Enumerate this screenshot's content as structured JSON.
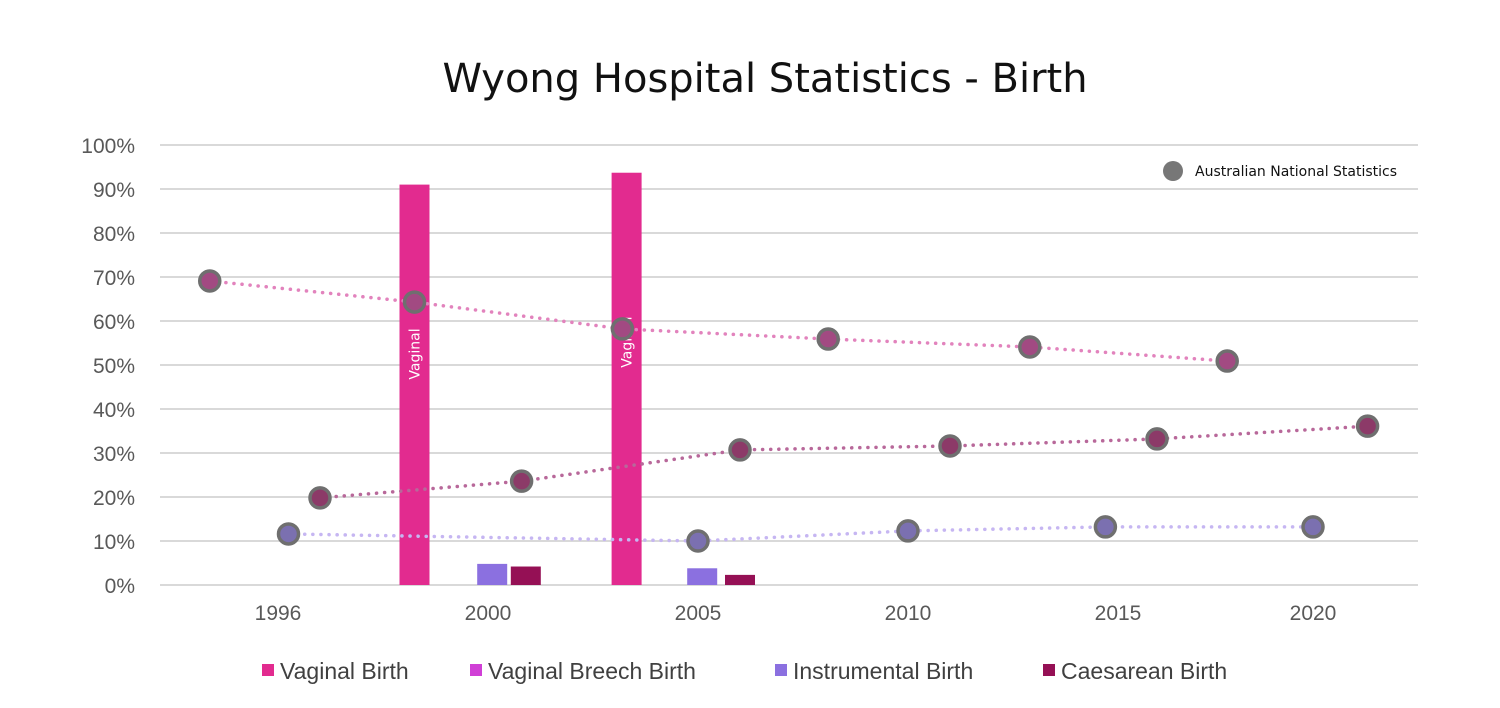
{
  "chart_data": {
    "type": "bar+line",
    "title": "Wyong Hospital Statistics - Birth",
    "xlabel": "",
    "ylabel": "",
    "x_ticks": [
      1996,
      2000,
      2005,
      2010,
      2015,
      2020
    ],
    "y_ticks": [
      "0%",
      "10%",
      "20%",
      "30%",
      "40%",
      "50%",
      "60%",
      "70%",
      "80%",
      "90%",
      "100%"
    ],
    "ylim": [
      0,
      100
    ],
    "grid": true,
    "legend_placement": "bottom",
    "bar_series": [
      {
        "name": "Vaginal Birth",
        "color": "#e22b8f",
        "points": [
          {
            "x": 1998.6,
            "y": 91.0,
            "label": "Vaginal"
          },
          {
            "x": 2003.3,
            "y": 93.7,
            "label": "Vaginal"
          }
        ]
      },
      {
        "name": "Vaginal Breech Birth",
        "color": "#d03fd6",
        "points": []
      },
      {
        "name": "Instrumental Birth",
        "color": "#8b70e0",
        "points": [
          {
            "x": 2000.1,
            "y": 4.8
          },
          {
            "x": 2005.1,
            "y": 3.8
          }
        ]
      },
      {
        "name": "Caesarean Birth",
        "color": "#951055",
        "points": [
          {
            "x": 2000.9,
            "y": 4.2
          },
          {
            "x": 2006.0,
            "y": 2.3
          }
        ]
      }
    ],
    "national_legend": "Australian National Statistics",
    "national_series": [
      {
        "line_color": "#e283bd",
        "fill": "#a24a82",
        "points": [
          {
            "x": 1994.7,
            "y": 69.1
          },
          {
            "x": 1998.6,
            "y": 64.3
          },
          {
            "x": 2003.2,
            "y": 58.2
          },
          {
            "x": 2008.1,
            "y": 55.9
          },
          {
            "x": 2012.9,
            "y": 54.1
          },
          {
            "x": 2017.8,
            "y": 50.9
          }
        ]
      },
      {
        "line_color": "#b8689a",
        "fill": "#8c3a68",
        "points": [
          {
            "x": 1996.8,
            "y": 19.8
          },
          {
            "x": 2000.8,
            "y": 23.6
          },
          {
            "x": 2006.0,
            "y": 30.7
          },
          {
            "x": 2011.0,
            "y": 31.6
          },
          {
            "x": 2016.0,
            "y": 33.2
          },
          {
            "x": 2021.4,
            "y": 36.1
          }
        ]
      },
      {
        "line_color": "#c6b6f2",
        "fill": "#7b70b0",
        "points": [
          {
            "x": 1996.2,
            "y": 11.6
          },
          {
            "x": 2005.0,
            "y": 10.0
          },
          {
            "x": 2010.0,
            "y": 12.3
          },
          {
            "x": 2014.7,
            "y": 13.2
          },
          {
            "x": 2020.0,
            "y": 13.2
          }
        ]
      }
    ]
  }
}
